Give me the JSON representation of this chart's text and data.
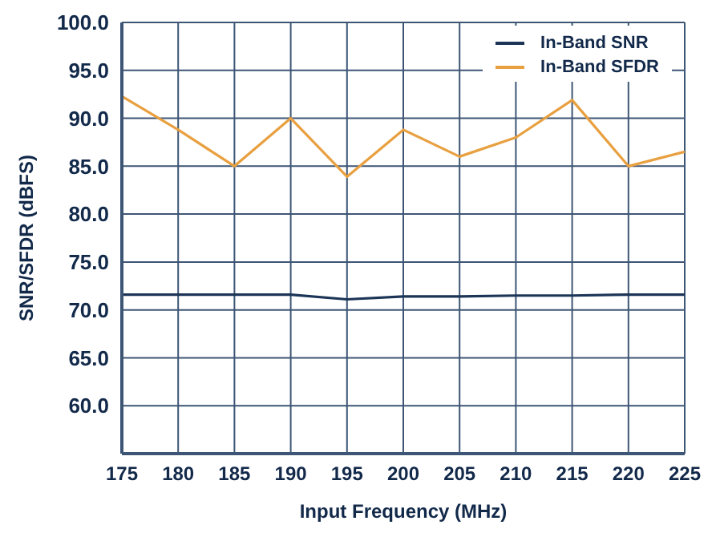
{
  "chart_data": {
    "type": "line",
    "xlabel": "Input Frequency (MHz)",
    "ylabel": "SNR/SFDR (dBFS)",
    "x": [
      175,
      180,
      185,
      190,
      195,
      200,
      205,
      210,
      215,
      220,
      225
    ],
    "series": [
      {
        "name": "In-Band SNR",
        "color": "#1c3557",
        "values": [
          71.6,
          71.6,
          71.6,
          71.6,
          71.1,
          71.4,
          71.4,
          71.5,
          71.5,
          71.6,
          71.6
        ]
      },
      {
        "name": "In-Band SFDR",
        "color": "#e8a040",
        "values": [
          92.3,
          88.8,
          85.0,
          90.0,
          83.9,
          88.8,
          86.0,
          88.0,
          91.9,
          85.0,
          86.5
        ]
      }
    ],
    "xlim": [
      175,
      225
    ],
    "xticks": [
      175,
      180,
      185,
      190,
      195,
      200,
      205,
      210,
      215,
      220,
      225
    ],
    "ylim": [
      55,
      100
    ],
    "yticks": [
      {
        "value": 60,
        "label": "60.0"
      },
      {
        "value": 65,
        "label": "65.0"
      },
      {
        "value": 70,
        "label": "70.0"
      },
      {
        "value": 75,
        "label": "75.0"
      },
      {
        "value": 80,
        "label": "80.0"
      },
      {
        "value": 85,
        "label": "85.0"
      },
      {
        "value": 90,
        "label": "90.0"
      },
      {
        "value": 95,
        "label": "95.0"
      },
      {
        "value": 100,
        "label": "100.0"
      }
    ],
    "grid": true,
    "legend": "top right",
    "marker": "none",
    "line_style": "solid"
  }
}
